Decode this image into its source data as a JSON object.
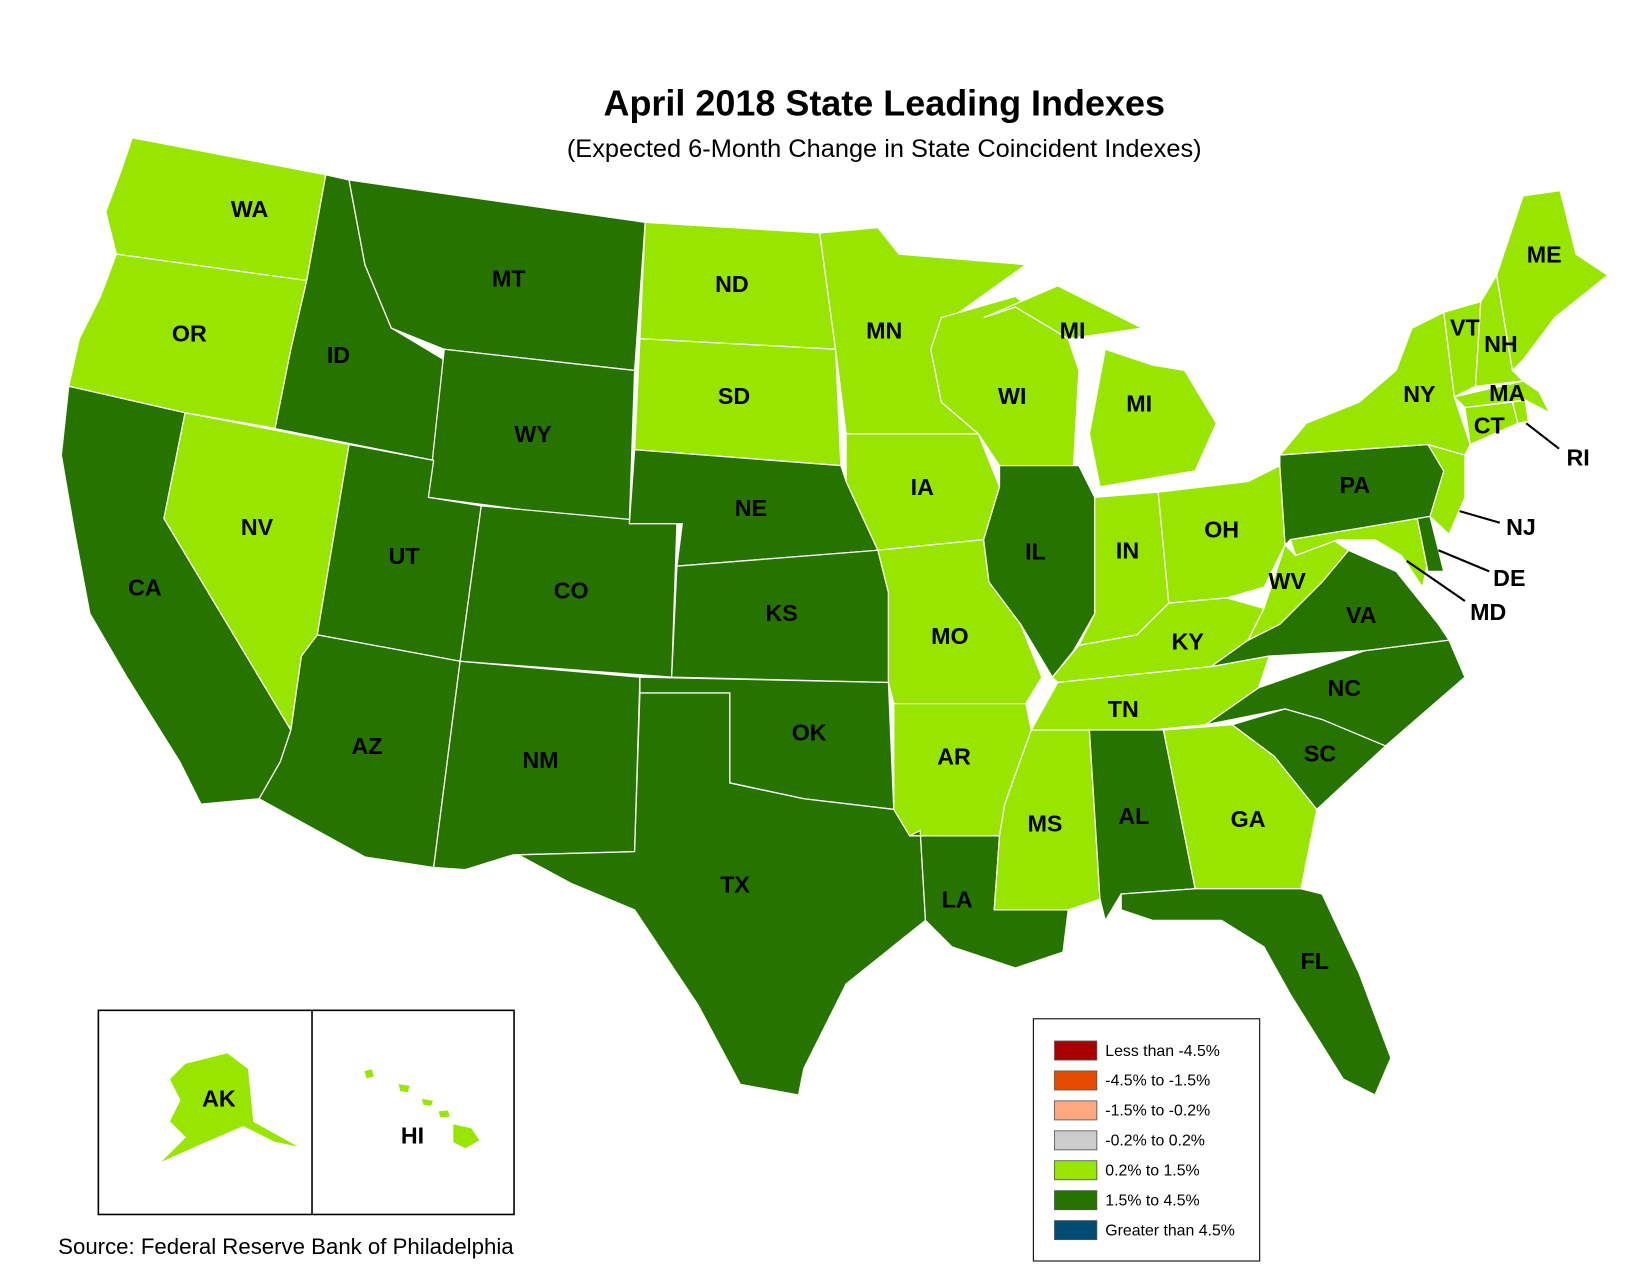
{
  "title": "April 2018 State Leading Indexes",
  "subtitle": "(Expected 6-Month Change in State Coincident Indexes)",
  "source": "Source: Federal Reserve Bank of Philadelphia",
  "legend": [
    {
      "label": "Less than -4.5%",
      "color": "#a80000"
    },
    {
      "label": "-4.5% to -1.5%",
      "color": "#e64c00"
    },
    {
      "label": "-1.5% to -0.2%",
      "color": "#ffa77f"
    },
    {
      "label": "-0.2% to 0.2%",
      "color": "#cccccc"
    },
    {
      "label": "0.2% to 1.5%",
      "color": "#98e600"
    },
    {
      "label": "1.5% to 4.5%",
      "color": "#267300"
    },
    {
      "label": "Greater than 4.5%",
      "color": "#004c73"
    }
  ],
  "states": [
    {
      "abbr": "WA",
      "color": "#98e600"
    },
    {
      "abbr": "OR",
      "color": "#98e600"
    },
    {
      "abbr": "CA",
      "color": "#267300"
    },
    {
      "abbr": "NV",
      "color": "#98e600"
    },
    {
      "abbr": "ID",
      "color": "#267300"
    },
    {
      "abbr": "MT",
      "color": "#267300"
    },
    {
      "abbr": "WY",
      "color": "#267300"
    },
    {
      "abbr": "UT",
      "color": "#267300"
    },
    {
      "abbr": "CO",
      "color": "#267300"
    },
    {
      "abbr": "AZ",
      "color": "#267300"
    },
    {
      "abbr": "NM",
      "color": "#267300"
    },
    {
      "abbr": "ND",
      "color": "#98e600"
    },
    {
      "abbr": "SD",
      "color": "#98e600"
    },
    {
      "abbr": "NE",
      "color": "#267300"
    },
    {
      "abbr": "KS",
      "color": "#267300"
    },
    {
      "abbr": "OK",
      "color": "#267300"
    },
    {
      "abbr": "TX",
      "color": "#267300"
    },
    {
      "abbr": "MN",
      "color": "#98e600"
    },
    {
      "abbr": "IA",
      "color": "#98e600"
    },
    {
      "abbr": "MO",
      "color": "#98e600"
    },
    {
      "abbr": "AR",
      "color": "#98e600"
    },
    {
      "abbr": "LA",
      "color": "#267300"
    },
    {
      "abbr": "WI",
      "color": "#98e600"
    },
    {
      "abbr": "MI",
      "color": "#98e600"
    },
    {
      "abbr": "IL",
      "color": "#267300"
    },
    {
      "abbr": "IN",
      "color": "#98e600"
    },
    {
      "abbr": "OH",
      "color": "#98e600"
    },
    {
      "abbr": "KY",
      "color": "#98e600"
    },
    {
      "abbr": "TN",
      "color": "#98e600"
    },
    {
      "abbr": "MS",
      "color": "#98e600"
    },
    {
      "abbr": "AL",
      "color": "#267300"
    },
    {
      "abbr": "GA",
      "color": "#98e600"
    },
    {
      "abbr": "FL",
      "color": "#267300"
    },
    {
      "abbr": "SC",
      "color": "#267300"
    },
    {
      "abbr": "NC",
      "color": "#267300"
    },
    {
      "abbr": "VA",
      "color": "#267300"
    },
    {
      "abbr": "WV",
      "color": "#98e600"
    },
    {
      "abbr": "PA",
      "color": "#267300"
    },
    {
      "abbr": "MD",
      "color": "#98e600"
    },
    {
      "abbr": "DE",
      "color": "#267300"
    },
    {
      "abbr": "NJ",
      "color": "#98e600"
    },
    {
      "abbr": "NY",
      "color": "#98e600"
    },
    {
      "abbr": "CT",
      "color": "#98e600"
    },
    {
      "abbr": "RI",
      "color": "#98e600"
    },
    {
      "abbr": "MA",
      "color": "#98e600"
    },
    {
      "abbr": "VT",
      "color": "#98e600"
    },
    {
      "abbr": "NH",
      "color": "#98e600"
    },
    {
      "abbr": "ME",
      "color": "#98e600"
    },
    {
      "abbr": "AK",
      "color": "#98e600"
    },
    {
      "abbr": "HI",
      "color": "#98e600"
    }
  ]
}
